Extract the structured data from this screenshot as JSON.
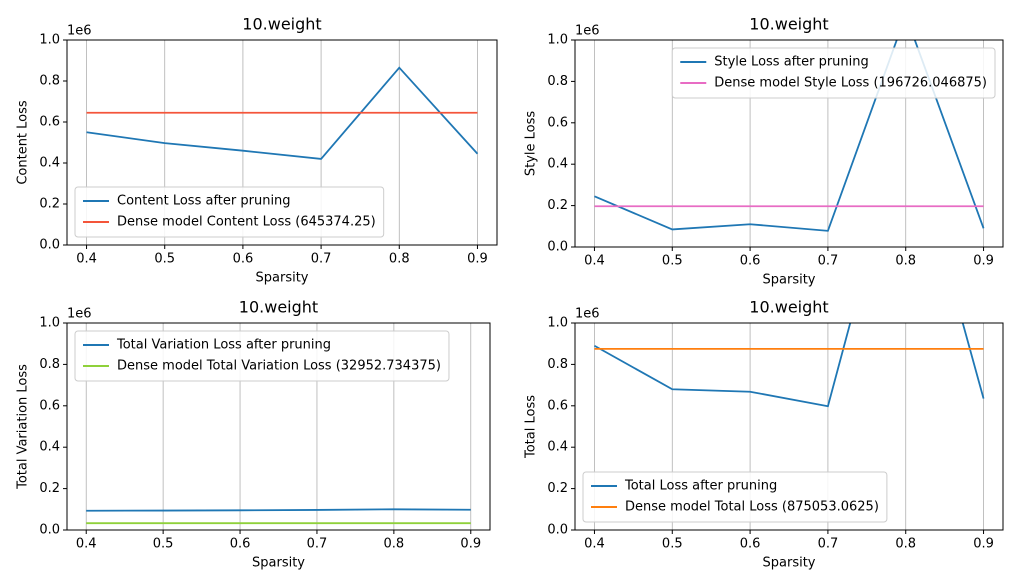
{
  "chart_data": [
    {
      "type": "line",
      "title": "10.weight",
      "xlabel": "Sparsity",
      "ylabel": "Content Loss",
      "offset_label": "1e6",
      "x": [
        0.4,
        0.5,
        0.6,
        0.7,
        0.8,
        0.9
      ],
      "series": [
        {
          "name": "Content Loss after pruning",
          "color": "#1f77b4",
          "values": [
            0.55,
            0.497,
            0.46,
            0.42,
            0.865,
            0.445
          ]
        },
        {
          "name": "Dense model Content Loss (645374.25)",
          "color": "#f4553a",
          "values": [
            0.645,
            0.645,
            0.645,
            0.645,
            0.645,
            0.645
          ]
        }
      ],
      "xlim": [
        0.375,
        0.925
      ],
      "xticks": [
        0.4,
        0.5,
        0.6,
        0.7,
        0.8,
        0.9
      ],
      "ylim": [
        0,
        1
      ],
      "yticks": [
        {
          "value": 0,
          "label": "0.0"
        },
        0.2,
        0.4,
        0.6,
        0.8,
        {
          "value": 1,
          "label": "1.0"
        }
      ],
      "grid": "x",
      "legend": "lower left"
    },
    {
      "type": "line",
      "title": "10.weight",
      "xlabel": "Sparsity",
      "ylabel": "Style Loss",
      "offset_label": "1e6",
      "x": [
        0.4,
        0.5,
        0.6,
        0.7,
        0.8,
        0.9
      ],
      "series": [
        {
          "name": "Style Loss after pruning",
          "color": "#1f77b4",
          "values": [
            0.245,
            0.085,
            0.11,
            0.078,
            1.12,
            0.09
          ]
        },
        {
          "name": "Dense model Style Loss (196726.046875)",
          "color": "#e86cc4",
          "values": [
            0.197,
            0.197,
            0.197,
            0.197,
            0.197,
            0.197
          ]
        }
      ],
      "xlim": [
        0.375,
        0.925
      ],
      "xticks": [
        0.4,
        0.5,
        0.6,
        0.7,
        0.8,
        0.9
      ],
      "ylim": [
        0,
        1
      ],
      "yticks": [
        {
          "value": 0,
          "label": "0.0"
        },
        0.2,
        0.4,
        0.6,
        0.8,
        {
          "value": 1,
          "label": "1.0"
        }
      ],
      "grid": "x",
      "legend": "upper right"
    },
    {
      "type": "line",
      "title": "10.weight",
      "xlabel": "Sparsity",
      "ylabel": "Total Variation Loss",
      "offset_label": "1e6",
      "x": [
        0.4,
        0.5,
        0.6,
        0.7,
        0.8,
        0.9
      ],
      "series": [
        {
          "name": "Total Variation Loss after pruning",
          "color": "#1f77b4",
          "values": [
            0.093,
            0.094,
            0.095,
            0.097,
            0.1,
            0.098
          ]
        },
        {
          "name": "Dense model Total Variation Loss (32952.734375)",
          "color": "#8fd13a",
          "values": [
            0.033,
            0.033,
            0.033,
            0.033,
            0.033,
            0.033
          ]
        }
      ],
      "xlim": [
        0.375,
        0.925
      ],
      "xticks": [
        0.4,
        0.5,
        0.6,
        0.7,
        0.8,
        0.9
      ],
      "ylim": [
        0,
        1
      ],
      "yticks": [
        {
          "value": 0,
          "label": "0.0"
        },
        0.2,
        0.4,
        0.6,
        0.8,
        {
          "value": 1,
          "label": "1.0"
        }
      ],
      "grid": "x",
      "legend": "upper left"
    },
    {
      "type": "line",
      "title": "10.weight",
      "xlabel": "Sparsity",
      "ylabel": "Total Loss",
      "offset_label": "1e6",
      "x": [
        0.4,
        0.5,
        0.6,
        0.7,
        0.8,
        0.9
      ],
      "series": [
        {
          "name": "Total Loss after pruning",
          "color": "#1f77b4",
          "values": [
            0.89,
            0.68,
            0.668,
            0.598,
            2.0,
            0.635
          ]
        },
        {
          "name": "Dense model Total Loss (875053.0625)",
          "color": "#ff7f0e",
          "values": [
            0.875,
            0.875,
            0.875,
            0.875,
            0.875,
            0.875
          ]
        }
      ],
      "xlim": [
        0.375,
        0.925
      ],
      "xticks": [
        0.4,
        0.5,
        0.6,
        0.7,
        0.8,
        0.9
      ],
      "ylim": [
        0,
        1
      ],
      "yticks": [
        {
          "value": 0,
          "label": "0.0"
        },
        0.2,
        0.4,
        0.6,
        0.8,
        {
          "value": 1,
          "label": "1.0"
        }
      ],
      "grid": "x",
      "legend": "lower left"
    }
  ]
}
